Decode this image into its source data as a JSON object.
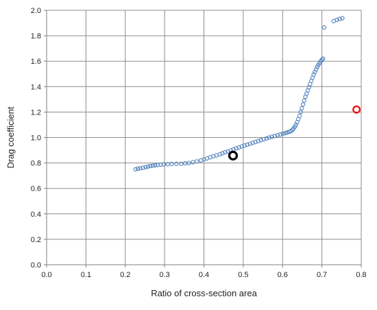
{
  "chart_data": {
    "type": "scatter",
    "title": "",
    "xlabel": "Ratio of cross-section area",
    "ylabel": "Drag coefficient",
    "xlim": [
      0.0,
      0.8
    ],
    "ylim": [
      0.0,
      2.0
    ],
    "x_ticks": [
      0.0,
      0.1,
      0.2,
      0.3,
      0.4,
      0.5,
      0.6,
      0.7,
      0.8
    ],
    "y_ticks": [
      0.0,
      0.2,
      0.4,
      0.6,
      0.8,
      1.0,
      1.2,
      1.4,
      1.6,
      1.8,
      2.0
    ],
    "x_tick_labels": [
      "0.0",
      "0.1",
      "0.2",
      "0.3",
      "0.4",
      "0.5",
      "0.6",
      "0.7",
      "0.8"
    ],
    "y_tick_labels": [
      "0.0",
      "0.2",
      "0.4",
      "0.6",
      "0.8",
      "1.0",
      "1.2",
      "1.4",
      "1.6",
      "1.8",
      "2.0"
    ],
    "grid": true,
    "legend": "none",
    "series": [
      {
        "color": "#4f81bd",
        "marker": "hollow-circle-small",
        "x": [
          0.226,
          0.232,
          0.238,
          0.245,
          0.252,
          0.258,
          0.264,
          0.27,
          0.276,
          0.282,
          0.29,
          0.298,
          0.308,
          0.318,
          0.33,
          0.342,
          0.352,
          0.362,
          0.372,
          0.382,
          0.392,
          0.4,
          0.408,
          0.416,
          0.424,
          0.432,
          0.44,
          0.447,
          0.454,
          0.461,
          0.468,
          0.475,
          0.482,
          0.489,
          0.496,
          0.503,
          0.51,
          0.517,
          0.524,
          0.531,
          0.538,
          0.545,
          0.552,
          0.559,
          0.566,
          0.573,
          0.58,
          0.587,
          0.594,
          0.601,
          0.607,
          0.612,
          0.617,
          0.621,
          0.625,
          0.628,
          0.631,
          0.634,
          0.637,
          0.64,
          0.643,
          0.646,
          0.649,
          0.652,
          0.655,
          0.658,
          0.661,
          0.664,
          0.667,
          0.67,
          0.673,
          0.676,
          0.679,
          0.682,
          0.685,
          0.688,
          0.691,
          0.694,
          0.697,
          0.7,
          0.703,
          0.706,
          0.73,
          0.738,
          0.745,
          0.752
        ],
        "y": [
          0.75,
          0.755,
          0.758,
          0.762,
          0.767,
          0.772,
          0.776,
          0.779,
          0.782,
          0.784,
          0.787,
          0.789,
          0.79,
          0.792,
          0.793,
          0.794,
          0.797,
          0.8,
          0.806,
          0.812,
          0.82,
          0.828,
          0.836,
          0.845,
          0.853,
          0.86,
          0.868,
          0.876,
          0.884,
          0.891,
          0.899,
          0.907,
          0.915,
          0.922,
          0.93,
          0.937,
          0.944,
          0.951,
          0.958,
          0.965,
          0.972,
          0.979,
          0.986,
          0.993,
          1.0,
          1.006,
          1.012,
          1.018,
          1.024,
          1.03,
          1.035,
          1.04,
          1.045,
          1.05,
          1.06,
          1.07,
          1.085,
          1.1,
          1.12,
          1.145,
          1.17,
          1.2,
          1.23,
          1.26,
          1.29,
          1.32,
          1.345,
          1.37,
          1.395,
          1.42,
          1.445,
          1.47,
          1.495,
          1.515,
          1.535,
          1.555,
          1.57,
          1.585,
          1.6,
          1.612,
          1.62,
          1.865,
          1.915,
          1.925,
          1.932,
          1.938
        ]
      },
      {
        "color": "#000000",
        "marker": "hollow-circle-large",
        "x": [
          0.474
        ],
        "y": [
          0.858
        ]
      },
      {
        "color": "#ee1111",
        "marker": "hollow-circle-medium",
        "x": [
          0.788
        ],
        "y": [
          1.22
        ]
      }
    ]
  }
}
